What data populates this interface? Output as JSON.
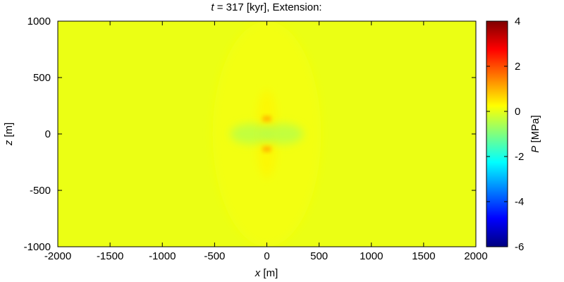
{
  "chart_data": {
    "type": "heatmap",
    "title": {
      "var": "t",
      "rest": " = 317 [kyr], Extension:"
    },
    "xlabel": {
      "var": "x",
      "unit": " [m]"
    },
    "ylabel": {
      "var": "z",
      "unit": " [m]"
    },
    "colorbar_label": {
      "var": "P",
      "unit": " [MPa]"
    },
    "xlim": [
      -2000,
      2000
    ],
    "ylim": [
      -1000,
      1000
    ],
    "clim": [
      -6,
      4
    ],
    "x_ticks": [
      -2000,
      -1500,
      -1000,
      -500,
      0,
      500,
      1000,
      1500,
      2000
    ],
    "x_tick_labels": [
      "-2000",
      "-1500",
      "-1000",
      "-500",
      "0",
      "500",
      "1000",
      "1500",
      "2000"
    ],
    "y_ticks": [
      -1000,
      -500,
      0,
      500,
      1000
    ],
    "y_tick_labels": [
      "-1000",
      "-500",
      "0",
      "500",
      "1000"
    ],
    "colorbar_ticks": [
      -6,
      -4,
      -2,
      0,
      2,
      4
    ],
    "colorbar_tick_labels": [
      "-6",
      "-4",
      "-2",
      "0",
      "2",
      "4"
    ],
    "colormap": [
      "#00007f",
      "#0000ff",
      "#007fff",
      "#00ffff",
      "#7fff7f",
      "#ffff00",
      "#ff7f00",
      "#ff0000",
      "#7f0000"
    ],
    "background_value": 0.05,
    "features": [
      {
        "kind": "ellipse",
        "x": 0,
        "z": 0,
        "rx": 520,
        "rz": 1000,
        "value": 0.15
      },
      {
        "kind": "ellipse",
        "x": 0,
        "z": 130,
        "rx": 90,
        "rz": 260,
        "value": 0.35
      },
      {
        "kind": "ellipse",
        "x": 0,
        "z": -130,
        "rx": 90,
        "rz": 260,
        "value": 0.35
      },
      {
        "kind": "ellipse",
        "x": -150,
        "z": 0,
        "rx": 200,
        "rz": 90,
        "value": -0.5
      },
      {
        "kind": "ellipse",
        "x": 150,
        "z": 0,
        "rx": 200,
        "rz": 90,
        "value": -0.5
      },
      {
        "kind": "rect",
        "x0": -40,
        "x1": 40,
        "z0": 110,
        "z1": 160,
        "value": 0.9
      },
      {
        "kind": "rect",
        "x0": -40,
        "x1": 40,
        "z0": -160,
        "z1": -110,
        "value": 0.9
      }
    ]
  }
}
